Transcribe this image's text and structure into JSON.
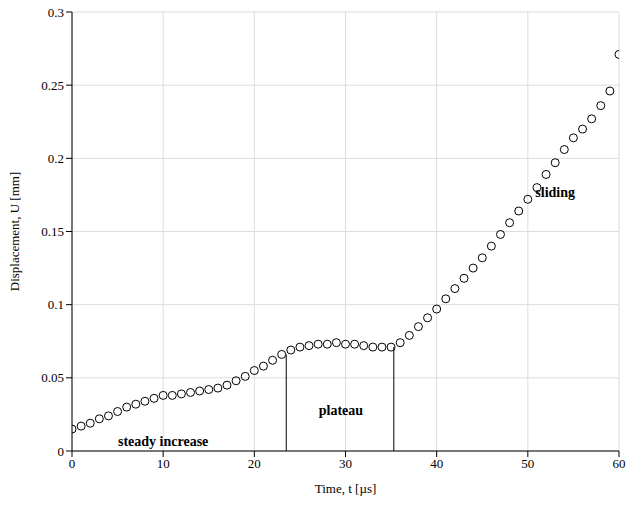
{
  "chart_data": {
    "type": "scatter",
    "x_label": "Time, t [µs]",
    "y_label": "Displacement, U [mm]",
    "x": [
      0,
      1,
      2,
      3,
      4,
      5,
      6,
      7,
      8,
      9,
      10,
      11,
      12,
      13,
      14,
      15,
      16,
      17,
      18,
      19,
      20,
      21,
      22,
      23,
      24,
      25,
      26,
      27,
      28,
      29,
      30,
      31,
      32,
      33,
      34,
      35,
      36,
      37,
      38,
      39,
      40,
      41,
      42,
      43,
      44,
      45,
      46,
      47,
      48,
      49,
      50,
      51,
      52,
      53,
      54,
      55,
      56,
      57,
      58,
      59,
      60
    ],
    "values": [
      0.015,
      0.017,
      0.019,
      0.022,
      0.024,
      0.027,
      0.03,
      0.032,
      0.034,
      0.036,
      0.038,
      0.038,
      0.039,
      0.04,
      0.041,
      0.042,
      0.043,
      0.045,
      0.048,
      0.051,
      0.055,
      0.058,
      0.062,
      0.066,
      0.069,
      0.071,
      0.072,
      0.073,
      0.073,
      0.074,
      0.073,
      0.073,
      0.072,
      0.071,
      0.071,
      0.071,
      0.074,
      0.079,
      0.085,
      0.091,
      0.097,
      0.104,
      0.111,
      0.118,
      0.125,
      0.132,
      0.14,
      0.148,
      0.156,
      0.164,
      0.172,
      0.18,
      0.189,
      0.197,
      0.206,
      0.214,
      0.22,
      0.227,
      0.236,
      0.246,
      0.271
    ],
    "color": "#000000",
    "marker": "circle_open",
    "xlim": [
      0,
      60
    ],
    "ylim": [
      0,
      0.3
    ],
    "xticks": [
      0,
      10,
      20,
      30,
      40,
      50,
      60
    ],
    "yticks": [
      0,
      0.05,
      0.1,
      0.15,
      0.2,
      0.25,
      0.3
    ],
    "grid": true,
    "phase_boundaries": [
      23.5,
      35.3
    ],
    "annotations": [
      {
        "text": "steady increase",
        "x": 10,
        "y": 0.007
      },
      {
        "text": "plateau",
        "x": 29.5,
        "y": 0.028
      },
      {
        "text": "sliding",
        "x": 53,
        "y": 0.177
      }
    ]
  }
}
